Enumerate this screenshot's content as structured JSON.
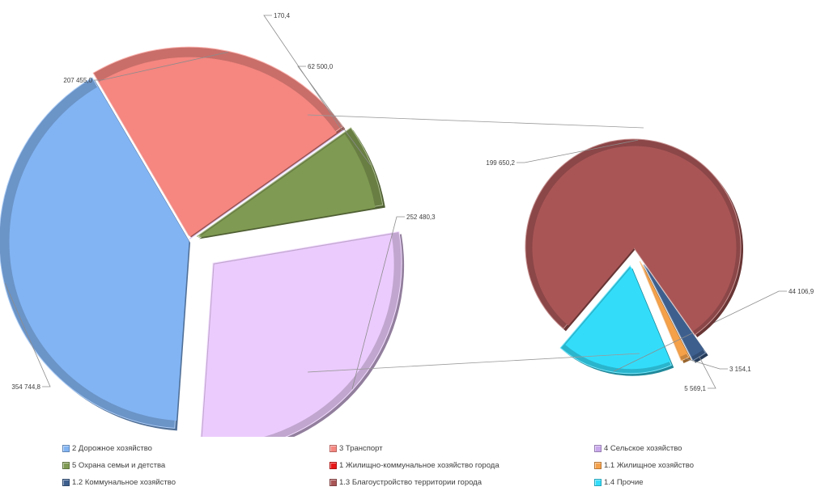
{
  "chart_data": {
    "type": "pie",
    "subtype": "pie-of-pie",
    "main_pie": {
      "slices": [
        {
          "name": "2 Дорожное хозяйство",
          "value": 354744.8,
          "label": "354 744,8",
          "color": "#82b4f3"
        },
        {
          "name": "3 Транспорт",
          "value": 207455.0,
          "label": "207 455,0",
          "color": "#f58680"
        },
        {
          "name": "4 Сельское хозяйство",
          "value": 170.4,
          "label": "170,4",
          "color": "#c9a8ec"
        },
        {
          "name": "5 Охрана семьи и детства",
          "value": 62500.0,
          "label": "62 500,0",
          "color": "#7f9a52"
        },
        {
          "name": "1 Жилищно-коммунальное хозяйство города",
          "value": 252480.3,
          "label": "252 480,3",
          "color": "#ebcbfd"
        }
      ]
    },
    "secondary_pie": {
      "parent": "1 Жилищно-коммунальное хозяйство города",
      "slices": [
        {
          "name": "1.3 Благоустройство территории города",
          "value": 199650.2,
          "label": "199 650,2",
          "color": "#a95556"
        },
        {
          "name": "1.4 Прочие",
          "value": 44106.9,
          "label": "44 106,9",
          "color": "#33ddfa"
        },
        {
          "name": "1.1 Жилищное хозяйство",
          "value": 3154.1,
          "label": "3 154,1",
          "color": "#f5a14a"
        },
        {
          "name": "1.2 Коммунальное хозяйство",
          "value": 5569.1,
          "label": "5 569,1",
          "color": "#3d5f8e"
        }
      ]
    },
    "legend": {
      "placement": "bottom",
      "items": [
        {
          "name": "2 Дорожное хозяйство",
          "color": "#82b4f3"
        },
        {
          "name": "3 Транспорт",
          "color": "#f58680"
        },
        {
          "name": "4 Сельское хозяйство",
          "color": "#c9a8ec"
        },
        {
          "name": "5 Охрана семьи и детства",
          "color": "#7f9a52"
        },
        {
          "name": "1 Жилищно-коммунальное хозяйство города",
          "color": "#e81818"
        },
        {
          "name": "1.1 Жилищное хозяйство",
          "color": "#f5a14a"
        },
        {
          "name": "1.2 Коммунальное хозяйство",
          "color": "#3d5f8e"
        },
        {
          "name": "1.3 Благоустройство территории города",
          "color": "#a95556"
        },
        {
          "name": "1.4 Прочие",
          "color": "#33ddfa"
        }
      ]
    }
  }
}
